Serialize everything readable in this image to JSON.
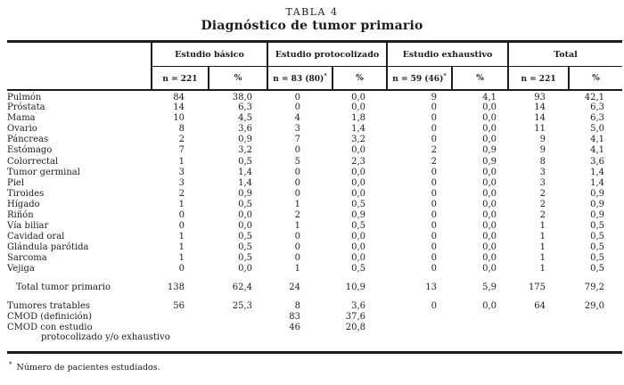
{
  "title": {
    "line1": "TABLA 4",
    "line2": "Diagnóstico de tumor primario"
  },
  "table": {
    "groups": [
      {
        "label": "Estudio básico",
        "n_label": "n = 221",
        "n_sup": "",
        "pct_label": "%"
      },
      {
        "label": "Estudio protocolizado",
        "n_label": "n = 83 (80)",
        "n_sup": "*",
        "pct_label": "%"
      },
      {
        "label": "Estudio exhaustivo",
        "n_label": "n = 59 (46)",
        "n_sup": "*",
        "pct_label": "%"
      },
      {
        "label": "Total",
        "n_label": "n = 221",
        "n_sup": "",
        "pct_label": "%"
      }
    ],
    "body_rows": [
      {
        "label": "Pulmón",
        "values": [
          "84",
          "38,0",
          "0",
          "0,0",
          "9",
          "4,1",
          "93",
          "42,1"
        ]
      },
      {
        "label": "Próstata",
        "values": [
          "14",
          "6,3",
          "0",
          "0,0",
          "0",
          "0,0",
          "14",
          "6,3"
        ]
      },
      {
        "label": "Mama",
        "values": [
          "10",
          "4,5",
          "4",
          "1,8",
          "0",
          "0,0",
          "14",
          "6,3"
        ]
      },
      {
        "label": "Ovario",
        "values": [
          "8",
          "3,6",
          "3",
          "1,4",
          "0",
          "0,0",
          "11",
          "5,0"
        ]
      },
      {
        "label": "Páncreas",
        "values": [
          "2",
          "0,9",
          "7",
          "3,2",
          "0",
          "0,0",
          "9",
          "4,1"
        ]
      },
      {
        "label": "Estómago",
        "values": [
          "7",
          "3,2",
          "0",
          "0,0",
          "2",
          "0,9",
          "9",
          "4,1"
        ]
      },
      {
        "label": "Colorrectal",
        "values": [
          "1",
          "0,5",
          "5",
          "2,3",
          "2",
          "0,9",
          "8",
          "3,6"
        ]
      },
      {
        "label": "Tumor germinal",
        "values": [
          "3",
          "1,4",
          "0",
          "0,0",
          "0",
          "0,0",
          "3",
          "1,4"
        ]
      },
      {
        "label": "Piel",
        "values": [
          "3",
          "1,4",
          "0",
          "0,0",
          "0",
          "0,0",
          "3",
          "1,4"
        ]
      },
      {
        "label": "Tiroides",
        "values": [
          "2",
          "0,9",
          "0",
          "0,0",
          "0",
          "0,0",
          "2",
          "0,9"
        ]
      },
      {
        "label": "Hígado",
        "values": [
          "1",
          "0,5",
          "1",
          "0,5",
          "0",
          "0,0",
          "2",
          "0,9"
        ]
      },
      {
        "label": "Riñón",
        "values": [
          "0",
          "0,0",
          "2",
          "0,9",
          "0",
          "0,0",
          "2",
          "0,9"
        ]
      },
      {
        "label": "Vía biliar",
        "values": [
          "0",
          "0,0",
          "1",
          "0,5",
          "0",
          "0,0",
          "1",
          "0,5"
        ]
      },
      {
        "label": "Cavidad oral",
        "values": [
          "1",
          "0,5",
          "0",
          "0,0",
          "0",
          "0,0",
          "1",
          "0,5"
        ]
      },
      {
        "label": "Glándula parótida",
        "values": [
          "1",
          "0,5",
          "0",
          "0,0",
          "0",
          "0,0",
          "1",
          "0,5"
        ]
      },
      {
        "label": "Sarcoma",
        "values": [
          "1",
          "0,5",
          "0",
          "0,0",
          "0",
          "0,0",
          "1",
          "0,5"
        ]
      },
      {
        "label": "Vejiga",
        "values": [
          "0",
          "0,0",
          "1",
          "0,5",
          "0",
          "0,0",
          "1",
          "0,5"
        ]
      },
      {
        "spacer": true
      },
      {
        "label": "Total tumor primario",
        "indent": 1,
        "total": true,
        "values": [
          "138",
          "62,4",
          "24",
          "10,9",
          "13",
          "5,9",
          "175",
          "79,2"
        ]
      },
      {
        "spacer": true
      },
      {
        "label": "Tumores tratables",
        "values": [
          "56",
          "25,3",
          "8",
          "3,6",
          "0",
          "0,0",
          "64",
          "29,0"
        ]
      },
      {
        "label": "CMOD (definición)",
        "values": [
          "",
          "",
          "83",
          "37,6",
          "",
          "",
          "",
          ""
        ]
      },
      {
        "label": "CMOD con estudio",
        "values": [
          "",
          "",
          "46",
          "20,8",
          "",
          "",
          "",
          ""
        ]
      },
      {
        "label": "protocolizado y/o exhaustivo",
        "indent": 2,
        "values": [
          "",
          "",
          "",
          "",
          "",
          "",
          "",
          ""
        ]
      }
    ]
  },
  "footnote": {
    "marker": "*",
    "text": "Número de pacientes estudiados."
  }
}
